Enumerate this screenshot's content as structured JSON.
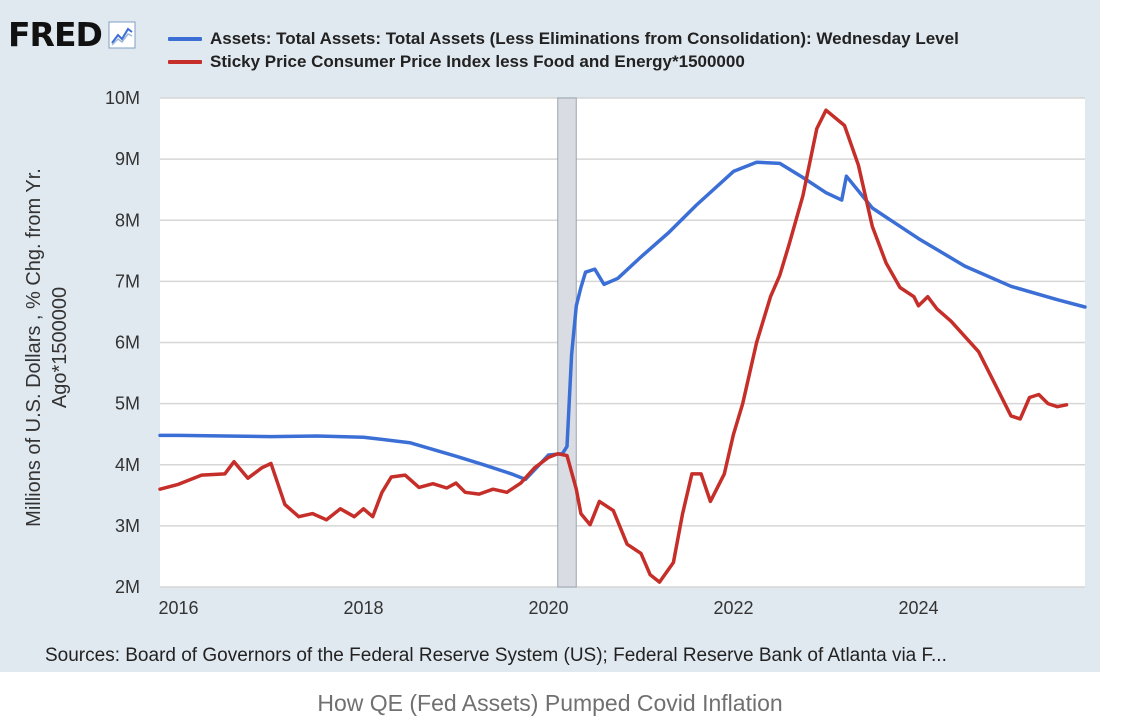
{
  "logo": {
    "text": "FRED",
    "icon": "line-chart-icon"
  },
  "source_text": "Sources: Board of Governors of the Federal Reserve System (US); Federal Reserve Bank of Atlanta via F...",
  "caption": "How QE (Fed Assets) Pumped Covid Inflation",
  "chart_data": {
    "type": "line",
    "title": "",
    "ylabel": "Millions of U.S. Dollars , % Chg. from Yr. Ago*1500000",
    "ylabel_lines": [
      "Millions of U.S. Dollars , % Chg. from Yr.",
      "Ago*1500000"
    ],
    "xlabel": "",
    "xlim": [
      2015.8,
      2025.8
    ],
    "ylim": [
      2000000,
      10000000
    ],
    "x_ticks": [
      2016,
      2018,
      2020,
      2022,
      2024
    ],
    "x_tick_labels": [
      "2016",
      "2018",
      "2020",
      "2022",
      "2024"
    ],
    "y_ticks": [
      2000000,
      3000000,
      4000000,
      5000000,
      6000000,
      7000000,
      8000000,
      9000000,
      10000000
    ],
    "y_tick_labels": [
      "2M",
      "3M",
      "4M",
      "5M",
      "6M",
      "7M",
      "8M",
      "9M",
      "10M"
    ],
    "grid": true,
    "legend_position": "top",
    "recession_shading": [
      {
        "start": 2020.1,
        "end": 2020.3
      }
    ],
    "series": [
      {
        "name": "Assets: Total Assets: Total Assets (Less Eliminations from Consolidation): Wednesday Level",
        "color": "#3b6fd6",
        "x": [
          2015.8,
          2016.0,
          2016.5,
          2017.0,
          2017.5,
          2018.0,
          2018.5,
          2019.0,
          2019.3,
          2019.6,
          2019.75,
          2019.9,
          2020.0,
          2020.15,
          2020.2,
          2020.25,
          2020.3,
          2020.35,
          2020.4,
          2020.5,
          2020.6,
          2020.75,
          2021.0,
          2021.3,
          2021.6,
          2022.0,
          2022.25,
          2022.5,
          2022.75,
          2023.0,
          2023.17,
          2023.22,
          2023.5,
          2024.0,
          2024.5,
          2025.0,
          2025.5,
          2025.8
        ],
        "y": [
          4480000,
          4480000,
          4470000,
          4460000,
          4470000,
          4450000,
          4360000,
          4140000,
          4000000,
          3850000,
          3760000,
          4000000,
          4160000,
          4180000,
          4300000,
          5800000,
          6600000,
          6900000,
          7150000,
          7200000,
          6950000,
          7050000,
          7400000,
          7800000,
          8250000,
          8800000,
          8950000,
          8930000,
          8700000,
          8450000,
          8330000,
          8720000,
          8200000,
          7700000,
          7250000,
          6920000,
          6700000,
          6580000
        ]
      },
      {
        "name": "Sticky Price Consumer Price Index less Food and Energy*1500000",
        "color": "#c62f29",
        "x": [
          2015.8,
          2016.0,
          2016.25,
          2016.5,
          2016.6,
          2016.75,
          2016.9,
          2017.0,
          2017.15,
          2017.3,
          2017.45,
          2017.6,
          2017.75,
          2017.9,
          2018.0,
          2018.1,
          2018.2,
          2018.3,
          2018.45,
          2018.6,
          2018.75,
          2018.9,
          2019.0,
          2019.1,
          2019.25,
          2019.4,
          2019.55,
          2019.7,
          2019.85,
          2020.0,
          2020.1,
          2020.2,
          2020.3,
          2020.35,
          2020.45,
          2020.55,
          2020.7,
          2020.85,
          2021.0,
          2021.1,
          2021.2,
          2021.35,
          2021.45,
          2021.55,
          2021.65,
          2021.75,
          2021.9,
          2022.0,
          2022.1,
          2022.25,
          2022.4,
          2022.5,
          2022.6,
          2022.75,
          2022.9,
          2023.0,
          2023.2,
          2023.35,
          2023.5,
          2023.65,
          2023.8,
          2023.95,
          2024.0,
          2024.1,
          2024.2,
          2024.35,
          2024.5,
          2024.65,
          2024.8,
          2025.0,
          2025.1,
          2025.2,
          2025.3,
          2025.4,
          2025.5,
          2025.6
        ],
        "y": [
          3600000,
          3680000,
          3830000,
          3850000,
          4050000,
          3780000,
          3950000,
          4020000,
          3350000,
          3150000,
          3200000,
          3100000,
          3280000,
          3150000,
          3280000,
          3150000,
          3550000,
          3800000,
          3830000,
          3630000,
          3690000,
          3620000,
          3700000,
          3550000,
          3520000,
          3600000,
          3550000,
          3700000,
          3950000,
          4120000,
          4180000,
          4150000,
          3600000,
          3200000,
          3020000,
          3400000,
          3250000,
          2700000,
          2550000,
          2200000,
          2080000,
          2400000,
          3200000,
          3850000,
          3850000,
          3400000,
          3850000,
          4500000,
          5000000,
          6000000,
          6750000,
          7100000,
          7600000,
          8400000,
          9500000,
          9800000,
          9550000,
          8900000,
          7900000,
          7300000,
          6900000,
          6750000,
          6600000,
          6750000,
          6550000,
          6350000,
          6100000,
          5850000,
          5400000,
          4800000,
          4750000,
          5100000,
          5150000,
          5000000,
          4950000,
          4980000
        ]
      }
    ]
  }
}
